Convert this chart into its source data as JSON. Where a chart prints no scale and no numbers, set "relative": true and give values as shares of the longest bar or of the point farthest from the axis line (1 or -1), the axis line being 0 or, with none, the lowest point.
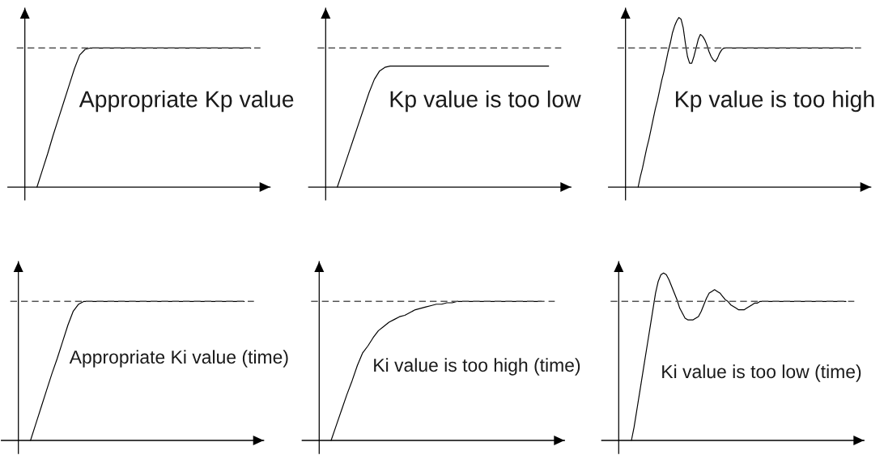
{
  "chart_data": [
    {
      "type": "line",
      "title": "Appropriate Kp value",
      "relative": true,
      "categories": [
        null,
        null,
        null,
        null,
        null,
        null,
        null,
        null,
        null,
        null,
        null,
        null,
        null,
        null,
        null,
        null,
        null,
        null,
        null,
        null,
        null,
        null,
        null,
        null,
        null,
        null,
        null,
        null,
        null,
        null,
        null,
        null,
        null,
        null,
        null,
        null,
        null,
        null,
        null,
        null,
        null
      ],
      "series": [
        {
          "color": "#000000",
          "values": [
            0,
            0.12,
            0.24,
            0.37,
            0.49,
            0.61,
            0.73,
            0.85,
            0.95,
            0.99,
            1,
            1,
            1,
            1,
            1,
            1,
            1,
            1,
            1,
            1,
            1,
            1,
            1,
            1,
            1,
            1,
            1,
            1,
            1,
            1,
            1,
            1,
            1,
            1,
            1,
            1,
            1,
            1,
            1,
            1,
            1
          ]
        }
      ],
      "ref_lines": [
        {
          "axis": "y",
          "value": 1,
          "color": "#555555",
          "line_style": "dashed"
        }
      ]
    },
    {
      "type": "line",
      "title": "Kp value is too low",
      "relative": true,
      "categories": [
        null,
        null,
        null,
        null,
        null,
        null,
        null,
        null,
        null,
        null,
        null,
        null,
        null,
        null,
        null,
        null,
        null,
        null,
        null,
        null,
        null,
        null,
        null,
        null,
        null,
        null,
        null,
        null,
        null,
        null,
        null,
        null,
        null,
        null,
        null,
        null,
        null,
        null,
        null,
        null,
        null
      ],
      "series": [
        {
          "color": "#000000",
          "values": [
            0,
            0.13,
            0.26,
            0.39,
            0.52,
            0.65,
            0.78,
            0.89,
            0.96,
            0.99,
            1,
            1,
            1,
            1,
            1,
            1,
            1,
            1,
            1,
            1,
            1,
            1,
            1,
            1,
            1,
            1,
            1,
            1,
            1,
            1,
            1,
            1,
            1,
            1,
            1,
            1,
            1,
            1,
            1,
            1,
            1
          ]
        }
      ],
      "ref_lines": [
        {
          "axis": "y",
          "value": 1.15,
          "color": "#555555",
          "line_style": "dashed"
        }
      ]
    },
    {
      "type": "line",
      "title": "Kp value is too high",
      "relative": true,
      "categories": [
        null,
        null,
        null,
        null,
        null,
        null,
        null,
        null,
        null,
        null,
        null,
        null,
        null,
        null,
        null,
        null,
        null,
        null,
        null,
        null,
        null,
        null,
        null,
        null,
        null,
        null,
        null,
        null,
        null,
        null,
        null,
        null,
        null,
        null,
        null,
        null,
        null,
        null,
        null,
        null,
        null,
        null,
        null,
        null,
        null,
        null,
        null,
        null,
        null,
        null,
        null,
        null,
        null,
        null,
        null,
        null,
        null,
        null,
        null,
        null,
        null,
        null,
        null,
        null,
        null,
        null,
        null,
        null,
        null,
        null,
        null,
        null,
        null,
        null,
        null,
        null,
        null,
        null,
        null,
        null,
        null,
        null,
        null,
        null,
        null,
        null,
        null,
        null,
        null,
        null,
        null,
        null,
        null,
        null,
        null,
        null,
        null,
        null,
        null,
        null,
        null
      ],
      "series": [
        {
          "color": "#000000",
          "values": [
            0,
            0.06,
            0.11,
            0.17,
            0.23,
            0.28,
            0.34,
            0.4,
            0.46,
            0.51,
            0.57,
            0.63,
            0.68,
            0.74,
            0.8,
            0.85,
            0.91,
            0.95,
            0.98,
            1,
            0.99,
            0.94,
            0.85,
            0.77,
            0.73,
            0.73,
            0.77,
            0.82,
            0.87,
            0.9,
            0.89,
            0.87,
            0.84,
            0.8,
            0.77,
            0.75,
            0.74,
            0.76,
            0.79,
            0.81,
            0.82,
            0.82,
            0.82,
            0.82,
            0.82,
            0.82,
            0.82,
            0.82,
            0.82,
            0.82,
            0.82,
            0.82,
            0.82,
            0.82,
            0.82,
            0.82,
            0.82,
            0.82,
            0.82,
            0.82,
            0.82,
            0.82,
            0.82,
            0.82,
            0.82,
            0.82,
            0.82,
            0.82,
            0.82,
            0.82,
            0.82,
            0.82,
            0.82,
            0.82,
            0.82,
            0.82,
            0.82,
            0.82,
            0.82,
            0.82,
            0.82,
            0.82,
            0.82,
            0.82,
            0.82,
            0.82,
            0.82,
            0.82,
            0.82,
            0.82,
            0.82,
            0.82,
            0.82,
            0.82,
            0.82,
            0.82,
            0.82,
            0.82,
            0.82,
            0.82,
            0.82
          ]
        }
      ],
      "ref_lines": [
        {
          "axis": "y",
          "value": 0.82,
          "color": "#555555",
          "line_style": "dashed"
        }
      ]
    },
    {
      "type": "line",
      "title": "Appropriate Ki value (time)",
      "relative": true,
      "categories": [
        null,
        null,
        null,
        null,
        null,
        null,
        null,
        null,
        null,
        null,
        null,
        null,
        null,
        null,
        null,
        null,
        null,
        null,
        null,
        null,
        null,
        null,
        null,
        null,
        null,
        null,
        null,
        null,
        null,
        null,
        null,
        null,
        null,
        null,
        null,
        null,
        null,
        null,
        null,
        null,
        null
      ],
      "series": [
        {
          "color": "#000000",
          "values": [
            0,
            0.12,
            0.24,
            0.36,
            0.48,
            0.59,
            0.71,
            0.83,
            0.93,
            0.98,
            1,
            1,
            1,
            1,
            1,
            1,
            1,
            1,
            1,
            1,
            1,
            1,
            1,
            1,
            1,
            1,
            1,
            1,
            1,
            1,
            1,
            1,
            1,
            1,
            1,
            1,
            1,
            1,
            1,
            1,
            1
          ]
        }
      ],
      "ref_lines": [
        {
          "axis": "y",
          "value": 1,
          "color": "#555555",
          "line_style": "dashed"
        }
      ]
    },
    {
      "type": "line",
      "title": "Ki value is too high (time)",
      "relative": true,
      "categories": [
        null,
        null,
        null,
        null,
        null,
        null,
        null,
        null,
        null,
        null,
        null,
        null,
        null,
        null,
        null,
        null,
        null,
        null,
        null,
        null,
        null,
        null,
        null,
        null,
        null,
        null,
        null,
        null,
        null,
        null,
        null,
        null,
        null,
        null,
        null,
        null,
        null,
        null,
        null,
        null,
        null
      ],
      "series": [
        {
          "color": "#000000",
          "values": [
            0,
            0.11,
            0.22,
            0.33,
            0.43,
            0.54,
            0.63,
            0.68,
            0.74,
            0.79,
            0.82,
            0.85,
            0.87,
            0.89,
            0.9,
            0.92,
            0.94,
            0.95,
            0.96,
            0.97,
            0.98,
            0.98,
            0.99,
            0.99,
            1,
            1,
            1,
            1,
            1,
            1,
            1,
            1,
            1,
            1,
            1,
            1,
            1,
            1,
            1,
            1,
            1
          ]
        }
      ],
      "ref_lines": [
        {
          "axis": "y",
          "value": 1,
          "color": "#555555",
          "line_style": "dashed"
        }
      ]
    },
    {
      "type": "line",
      "title": "Ki value is too low (time)",
      "relative": true,
      "categories": [
        null,
        null,
        null,
        null,
        null,
        null,
        null,
        null,
        null,
        null,
        null,
        null,
        null,
        null,
        null,
        null,
        null,
        null,
        null,
        null,
        null,
        null,
        null,
        null,
        null,
        null,
        null,
        null,
        null,
        null,
        null,
        null,
        null,
        null,
        null,
        null,
        null,
        null,
        null,
        null,
        null,
        null,
        null,
        null,
        null,
        null,
        null,
        null,
        null,
        null,
        null,
        null,
        null,
        null,
        null,
        null,
        null,
        null,
        null,
        null,
        null,
        null,
        null,
        null,
        null,
        null,
        null,
        null,
        null,
        null,
        null,
        null,
        null,
        null,
        null,
        null,
        null,
        null,
        null,
        null,
        null
      ],
      "series": [
        {
          "color": "#000000",
          "values": [
            0,
            0.08,
            0.18,
            0.28,
            0.38,
            0.48,
            0.58,
            0.68,
            0.78,
            0.88,
            0.95,
            0.99,
            1,
            0.99,
            0.96,
            0.92,
            0.88,
            0.84,
            0.79,
            0.76,
            0.73,
            0.72,
            0.72,
            0.72,
            0.73,
            0.74,
            0.77,
            0.81,
            0.85,
            0.88,
            0.89,
            0.9,
            0.89,
            0.88,
            0.86,
            0.84,
            0.83,
            0.81,
            0.8,
            0.79,
            0.78,
            0.78,
            0.78,
            0.79,
            0.8,
            0.81,
            0.82,
            0.82,
            0.83,
            0.83,
            0.83,
            0.83,
            0.83,
            0.83,
            0.83,
            0.83,
            0.83,
            0.83,
            0.83,
            0.83,
            0.83,
            0.83,
            0.83,
            0.83,
            0.83,
            0.83,
            0.83,
            0.83,
            0.83,
            0.83,
            0.83,
            0.83,
            0.83,
            0.83,
            0.83,
            0.83,
            0.83,
            0.83,
            0.83,
            0.83,
            0.83
          ]
        }
      ],
      "ref_lines": [
        {
          "axis": "y",
          "value": 0.83,
          "color": "#555555",
          "line_style": "dashed"
        }
      ]
    }
  ]
}
